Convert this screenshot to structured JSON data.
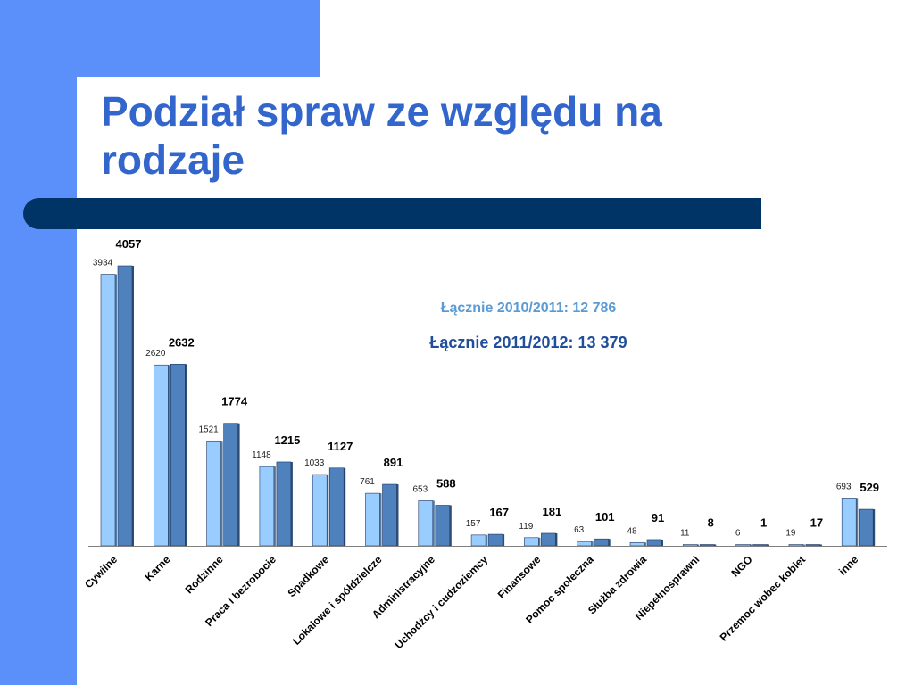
{
  "slide": {
    "title": "Podział spraw ze względu na rodzaje",
    "colors": {
      "accent": "#5b8ff9",
      "title": "#3366cc",
      "rule": "#003366"
    }
  },
  "chart_data": {
    "type": "bar",
    "title": "",
    "xlabel": "",
    "ylabel": "",
    "ylim": [
      0,
      4200
    ],
    "grid": false,
    "legend": "none",
    "categories": [
      "Cywilne",
      "Karne",
      "Rodzinne",
      "Praca i bezrobocie",
      "Spadkowe",
      "Lokalowe i spółdzielcze",
      "Administracyjne",
      "Uchodźcy i cudzoziemcy",
      "Finansowe",
      "Pomoc społeczna",
      "Służba zdrowia",
      "Niepełnosprawni",
      "NGO",
      "Przemoc wobec kobiet",
      "inne"
    ],
    "series": [
      {
        "values": [
          3934,
          2620,
          1521,
          1148,
          1033,
          761,
          653,
          157,
          119,
          63,
          48,
          11,
          6,
          19,
          693
        ],
        "color": "#99ccff"
      },
      {
        "values": [
          4057,
          2632,
          1774,
          1215,
          1127,
          891,
          588,
          167,
          181,
          101,
          91,
          8,
          1,
          17,
          529
        ],
        "color": "#4f81bd"
      }
    ],
    "annotations": [
      {
        "text": "Łącznie 2010/2011: 12 786",
        "color": "#5b9bd5"
      },
      {
        "text": "Łącznie 2011/2012: 13 379",
        "color": "#1f4e9a"
      }
    ]
  }
}
